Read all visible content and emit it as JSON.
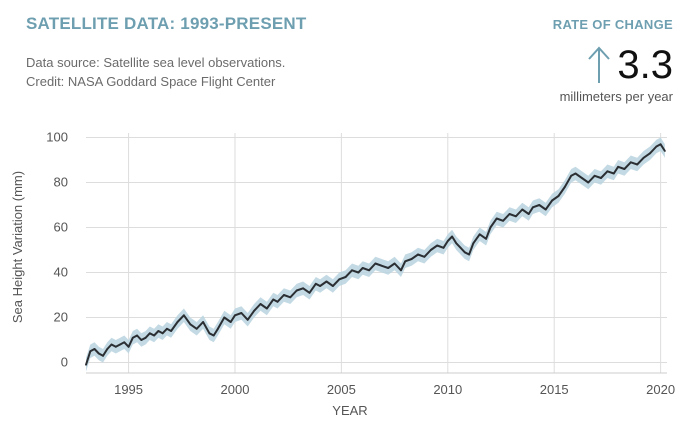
{
  "header": {
    "title": "SATELLITE DATA: 1993-PRESENT",
    "source_line": "Data source: Satellite sea level observations.",
    "credit_line": "Credit: NASA Goddard Space Flight Center"
  },
  "rate_of_change": {
    "label": "RATE OF CHANGE",
    "value": "3.3",
    "unit": "millimeters per year",
    "direction_icon": "arrow-up-icon"
  },
  "colors": {
    "title": "#6e9fb0",
    "line": "#2b2f33",
    "band": "#b9d3df",
    "grid": "#dddddd"
  },
  "chart_data": {
    "type": "line",
    "title": "",
    "xlabel": "YEAR",
    "ylabel": "Sea Height Variation (mm)",
    "xlim": [
      1993,
      2020.3
    ],
    "ylim": [
      -2,
      102
    ],
    "xticks": [
      1995,
      2000,
      2005,
      2010,
      2015,
      2020
    ],
    "yticks": [
      0,
      20,
      40,
      60,
      80,
      100
    ],
    "grid": true,
    "series": [
      {
        "uncertainty_band_mm": 3,
        "x": [
          1993.0,
          1993.2,
          1993.4,
          1993.6,
          1993.8,
          1994.0,
          1994.2,
          1994.4,
          1994.6,
          1994.8,
          1995.0,
          1995.2,
          1995.4,
          1995.6,
          1995.8,
          1996.0,
          1996.2,
          1996.4,
          1996.6,
          1996.8,
          1997.0,
          1997.3,
          1997.6,
          1997.9,
          1998.2,
          1998.5,
          1998.8,
          1999.0,
          1999.2,
          1999.5,
          1999.8,
          2000.0,
          2000.3,
          2000.6,
          2000.9,
          2001.2,
          2001.5,
          2001.8,
          2002.0,
          2002.3,
          2002.6,
          2002.9,
          2003.2,
          2003.5,
          2003.8,
          2004.0,
          2004.3,
          2004.6,
          2004.9,
          2005.2,
          2005.5,
          2005.8,
          2006.0,
          2006.3,
          2006.6,
          2006.9,
          2007.2,
          2007.5,
          2007.8,
          2008.0,
          2008.3,
          2008.6,
          2008.9,
          2009.2,
          2009.5,
          2009.8,
          2010.0,
          2010.2,
          2010.4,
          2010.6,
          2010.8,
          2011.0,
          2011.2,
          2011.5,
          2011.8,
          2012.0,
          2012.3,
          2012.6,
          2012.9,
          2013.2,
          2013.5,
          2013.8,
          2014.0,
          2014.3,
          2014.6,
          2014.9,
          2015.2,
          2015.5,
          2015.8,
          2016.0,
          2016.3,
          2016.6,
          2016.9,
          2017.2,
          2017.5,
          2017.8,
          2018.0,
          2018.3,
          2018.6,
          2018.9,
          2019.2,
          2019.5,
          2019.8,
          2020.0,
          2020.2
        ],
        "values": [
          -1,
          5,
          6,
          4,
          3,
          6,
          8,
          7,
          8,
          9,
          7,
          11,
          12,
          10,
          11,
          13,
          12,
          14,
          13,
          15,
          14,
          18,
          21,
          17,
          15,
          18,
          13,
          12,
          15,
          20,
          18,
          21,
          22,
          19,
          23,
          26,
          24,
          28,
          27,
          30,
          29,
          32,
          33,
          31,
          35,
          34,
          36,
          34,
          37,
          38,
          41,
          40,
          42,
          41,
          44,
          43,
          42,
          44,
          41,
          45,
          46,
          48,
          47,
          50,
          52,
          51,
          54,
          56,
          53,
          51,
          49,
          48,
          53,
          57,
          55,
          60,
          64,
          63,
          66,
          65,
          68,
          66,
          69,
          70,
          68,
          72,
          74,
          78,
          83,
          84,
          82,
          80,
          83,
          82,
          85,
          84,
          87,
          86,
          89,
          88,
          91,
          93,
          96,
          97,
          94
        ]
      }
    ]
  }
}
